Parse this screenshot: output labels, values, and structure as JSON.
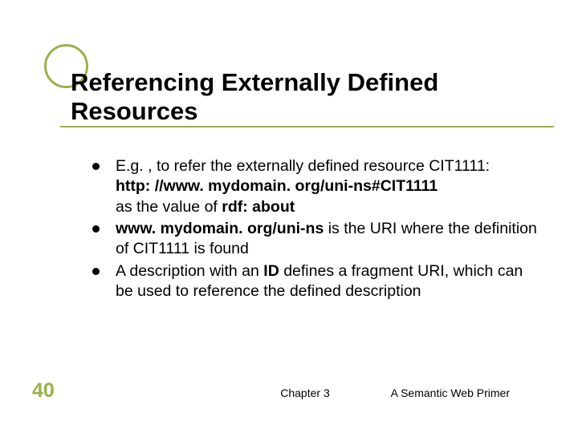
{
  "colors": {
    "accent": "#98b24a",
    "text": "#000000",
    "background": "#ffffff"
  },
  "typography": {
    "title_fontsize": 31,
    "title_weight": "bold",
    "body_fontsize": 19.5,
    "footer_fontsize": 14,
    "slidenum_fontsize": 25,
    "family": "Arial"
  },
  "title": "Referencing Externally Defined Resources",
  "bullets": [
    {
      "lines": [
        {
          "text": "E.g. , to refer the externally defined resource CIT1111:"
        },
        {
          "text": "http: //www. mydomain. org/uni-ns#CIT1111",
          "bold": true
        },
        {
          "text_pre": "as the value of ",
          "bold_text": "rdf: about"
        }
      ]
    },
    {
      "lines": [
        {
          "bold_text": "www. mydomain. org/uni-ns",
          "text_post": " is the URI where the definition of CIT1111 is found"
        }
      ]
    },
    {
      "lines": [
        {
          "text_pre": "A description with an ",
          "bold_text": "ID",
          "text_post": " defines a fragment URI, which can be used to reference the defined description"
        }
      ]
    }
  ],
  "slide_number": "40",
  "footer_center": "Chapter 3",
  "footer_right": "A Semantic Web Primer"
}
